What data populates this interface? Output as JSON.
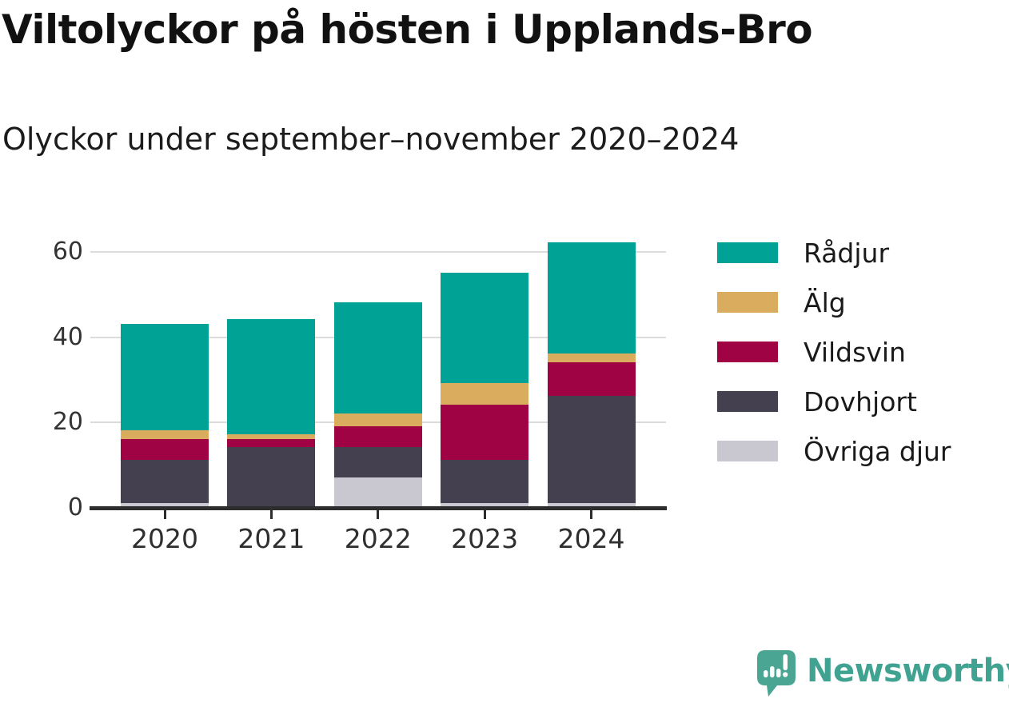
{
  "header": {
    "title": "Viltolyckor på hösten i Upplands-Bro",
    "subtitle": "Olyckor under september–november 2020–2024"
  },
  "chart_data": {
    "type": "bar",
    "stacked": true,
    "orientation": "vertical",
    "title": "Viltolyckor på hösten i Upplands-Bro",
    "subtitle": "Olyckor under september–november 2020–2024",
    "categories": [
      "2020",
      "2021",
      "2022",
      "2023",
      "2024"
    ],
    "series": [
      {
        "name": "Övriga djur",
        "color": "#c9c8d1",
        "values": [
          1,
          0,
          7,
          1,
          1
        ]
      },
      {
        "name": "Dovhjort",
        "color": "#454050",
        "values": [
          10,
          14,
          7,
          10,
          25
        ]
      },
      {
        "name": "Vildsvin",
        "color": "#a00344",
        "values": [
          5,
          2,
          5,
          13,
          8
        ]
      },
      {
        "name": "Älg",
        "color": "#d9ac5e",
        "values": [
          2,
          1,
          3,
          5,
          2
        ]
      },
      {
        "name": "Rådjur",
        "color": "#00a296",
        "values": [
          25,
          27,
          26,
          26,
          26
        ]
      }
    ],
    "stack_order": "bottom-to-top as listed",
    "totals": [
      43,
      44,
      48,
      55,
      62
    ],
    "xlabel": "",
    "ylabel": "",
    "y_ticks": [
      0,
      20,
      40,
      60
    ],
    "ylim": [
      0,
      64
    ],
    "grid": "horizontal",
    "legend_position": "right"
  },
  "legend": {
    "items": [
      {
        "label": "Rådjur",
        "color": "#00a296"
      },
      {
        "label": "Älg",
        "color": "#d9ac5e"
      },
      {
        "label": "Vildsvin",
        "color": "#a00344"
      },
      {
        "label": "Dovhjort",
        "color": "#454050"
      },
      {
        "label": "Övriga djur",
        "color": "#c9c8d1"
      }
    ]
  },
  "footer": {
    "brand": "Newsworthy",
    "brand_color": "#40a290",
    "logo_icon": "bar-chart-speech-bubble-icon",
    "logo_icon_color": "#4aa593"
  }
}
